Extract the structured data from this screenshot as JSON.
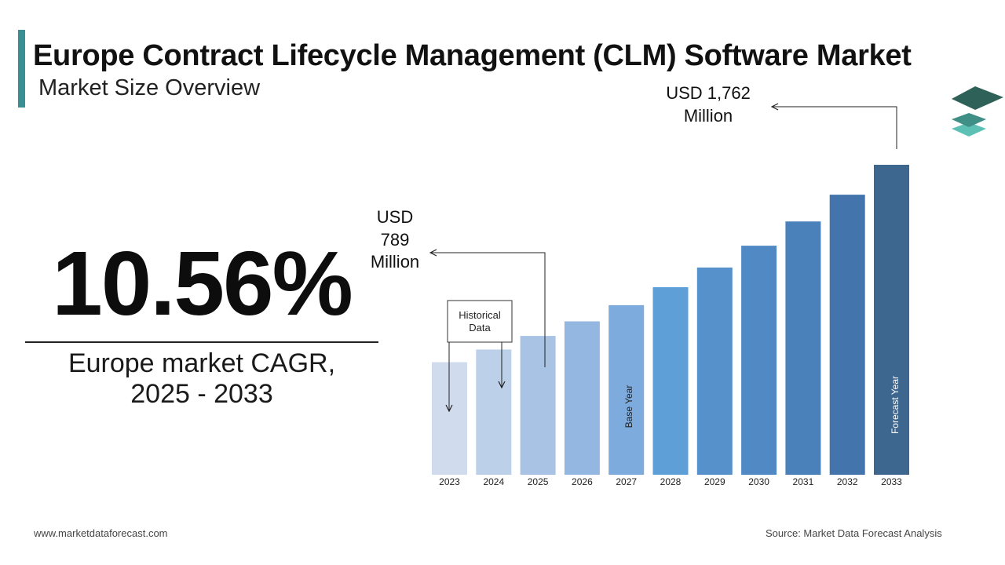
{
  "header": {
    "title": "Europe Contract Lifecycle Management (CLM) Software Market",
    "subtitle": "Market Size Overview"
  },
  "cagr": {
    "value": "10.56%",
    "label_line1": "Europe market CAGR,",
    "label_line2": "2025 - 2033"
  },
  "chart_data": {
    "type": "bar",
    "title": "Europe Contract Lifecycle Management (CLM) Software Market",
    "categories": [
      "2023",
      "2024",
      "2025",
      "2026",
      "2027",
      "2028",
      "2029",
      "2030",
      "2031",
      "2032",
      "2033"
    ],
    "values": [
      640,
      712,
      789,
      872,
      964,
      1066,
      1178,
      1302,
      1440,
      1592,
      1762
    ],
    "unit": "USD Million",
    "ylim": [
      0,
      1762
    ],
    "grid": false,
    "colors": [
      "#d0dcee",
      "#bcd0ea",
      "#a9c3e5",
      "#93b7e1",
      "#7eabde",
      "#5f9fd8",
      "#5791cc",
      "#5089c4",
      "#4a81bb",
      "#4375ac",
      "#3e678f"
    ],
    "bar_labels": {
      "2027": "Base Year",
      "2033": "Forecast Year"
    },
    "annotations": {
      "start": {
        "line1": "USD",
        "line2": "789",
        "line3": "Million",
        "year": "2025"
      },
      "end": {
        "line1": "USD 1,762",
        "line2": "Million",
        "year": "2033"
      },
      "historical": {
        "line1": "Historical",
        "line2": "Data"
      }
    }
  },
  "footer": {
    "website": "www.marketdataforecast.com",
    "source": "Source: Market Data Forecast Analysis"
  },
  "brand": {
    "logo": "stacked-layers-logo-icon",
    "accent": "#3a8f95"
  }
}
